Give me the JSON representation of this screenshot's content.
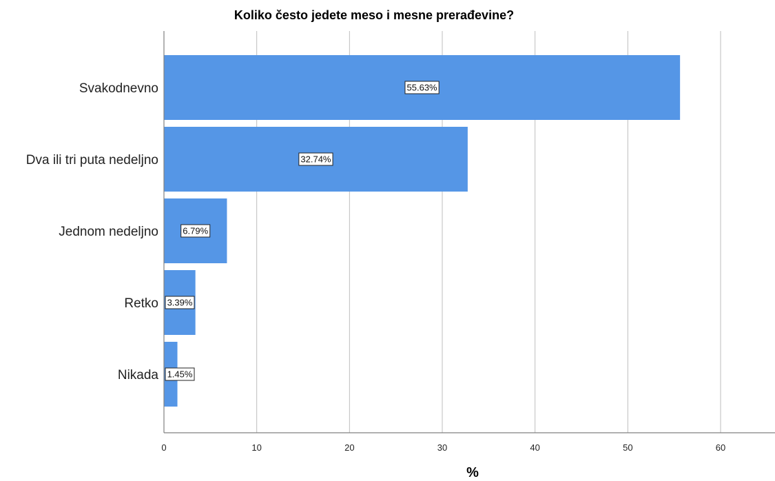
{
  "chart_data": {
    "type": "bar",
    "orientation": "horizontal",
    "title": "Koliko često jedete meso i mesne prerađevine?",
    "xlabel": "%",
    "ylabel": "",
    "categories": [
      "Svakodnevno",
      "Dva ili tri puta nedeljno",
      "Jednom nedeljno",
      "Retko",
      "Nikada"
    ],
    "values": [
      55.63,
      32.74,
      6.79,
      3.39,
      1.45
    ],
    "data_labels": [
      "55.63%",
      "32.74%",
      "6.79%",
      "3.39%",
      "1.45%"
    ],
    "xlim": [
      0,
      65
    ],
    "xticks": [
      0,
      10,
      20,
      30,
      40,
      50,
      60
    ],
    "xtick_labels": [
      "0",
      "10",
      "20",
      "30",
      "40",
      "50",
      "60"
    ],
    "grid": "vertical",
    "legend": "none",
    "bar_color": "#5596e6"
  }
}
